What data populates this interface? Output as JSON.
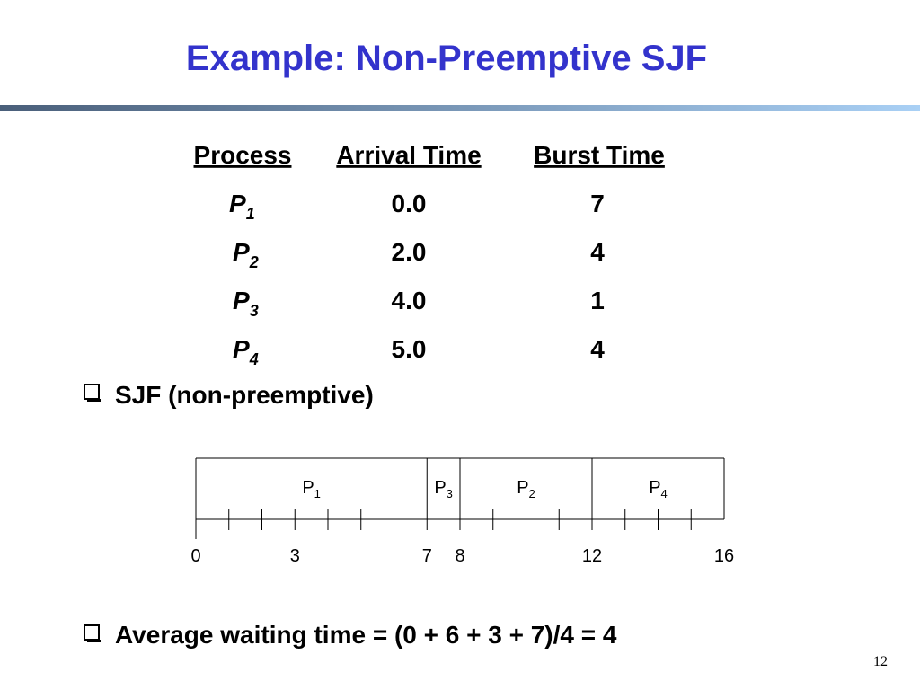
{
  "title": "Example: Non-Preemptive SJF",
  "table": {
    "headers": [
      "Process",
      "Arrival Time",
      "Burst Time"
    ],
    "rows": [
      {
        "process": "P",
        "sub": "1",
        "arrival": "0.0",
        "burst": "7"
      },
      {
        "process": "P",
        "sub": "2",
        "arrival": "2.0",
        "burst": "4"
      },
      {
        "process": "P",
        "sub": "3",
        "arrival": "4.0",
        "burst": "1"
      },
      {
        "process": "P",
        "sub": "4",
        "arrival": "5.0",
        "burst": "4"
      }
    ]
  },
  "bullets": [
    "SJF (non-preemptive)",
    "Average waiting time = (0 + 6 + 3 + 7)/4  = 4"
  ],
  "gantt": {
    "segments": [
      {
        "name": "P",
        "sub": "1",
        "start": 0,
        "end": 7
      },
      {
        "name": "P",
        "sub": "3",
        "start": 7,
        "end": 8
      },
      {
        "name": "P",
        "sub": "2",
        "start": 8,
        "end": 12
      },
      {
        "name": "P",
        "sub": "4",
        "start": 12,
        "end": 16
      }
    ],
    "times": [
      0,
      3,
      7,
      8,
      12,
      16
    ]
  },
  "page_number": "12"
}
